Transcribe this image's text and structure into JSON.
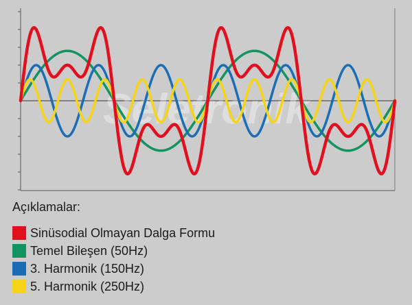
{
  "chart_data": {
    "type": "line",
    "title": "",
    "xlabel": "",
    "ylabel": "",
    "grid": false,
    "xlim": [
      0,
      720
    ],
    "ylim": [
      -1.4,
      1.4
    ],
    "x_unit": "degrees of fundamental (50Hz)",
    "series": [
      {
        "name": "Sinüsodial Olmayan Dalga Formu",
        "color": "#e0101e",
        "kind": "sum",
        "components": [
          {
            "amplitude": 0.7,
            "harmonic": 1
          },
          {
            "amplitude": 0.5,
            "harmonic": 3
          },
          {
            "amplitude": 0.3,
            "harmonic": 5
          }
        ]
      },
      {
        "name": "Temel Bileşen (50Hz)",
        "color": "#13935f",
        "kind": "sine",
        "amplitude": 0.7,
        "harmonic": 1
      },
      {
        "name": "3. Harmonik (150Hz)",
        "color": "#1b6db5",
        "kind": "sine",
        "amplitude": 0.5,
        "harmonic": 3
      },
      {
        "name": "5. Harmonik (250Hz)",
        "color": "#f5d417",
        "kind": "sine",
        "amplitude": 0.3,
        "harmonic": 5
      }
    ],
    "x_ticks": [
      180,
      540
    ],
    "y_ticks": [
      -1.25,
      -1.0,
      -0.75,
      -0.5,
      -0.25,
      0.25,
      0.5,
      0.75,
      1.0,
      1.25
    ],
    "draw_order": [
      1,
      2,
      3,
      0
    ]
  },
  "legend": {
    "title": "Açıklamalar:",
    "items": [
      {
        "label": "Sinüsodial Olmayan Dalga Formu",
        "color": "#e0101e"
      },
      {
        "label": "Temel Bileşen (50Hz)",
        "color": "#13935f"
      },
      {
        "label": "3. Harmonik (150Hz)",
        "color": "#1b6db5"
      },
      {
        "label": "5. Harmonik (250Hz)",
        "color": "#f5d417"
      }
    ]
  },
  "watermark": "Seletronik"
}
